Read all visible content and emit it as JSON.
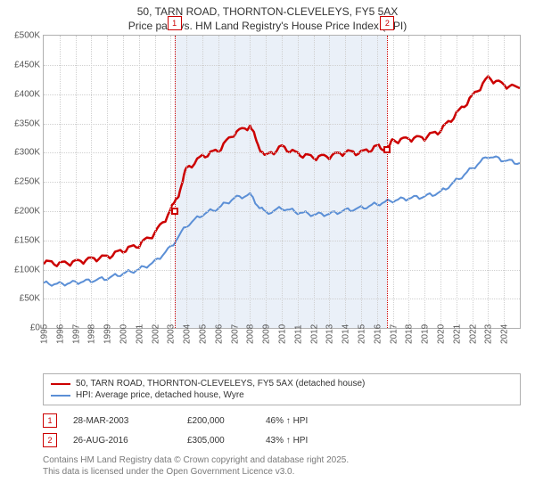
{
  "title_line1": "50, TARN ROAD, THORNTON-CLEVELEYS, FY5 5AX",
  "title_line2": "Price paid vs. HM Land Registry's House Price Index (HPI)",
  "chart": {
    "type": "line",
    "background_color": "#ffffff",
    "grid_color": "#d0d0d0",
    "axis_color": "#b0b0b0",
    "shade_color": "#eaf0f8",
    "text_color": "#555555",
    "tick_fontsize": 10,
    "x": {
      "min": 1995,
      "max": 2025,
      "tick_step": 1,
      "labels": [
        "1995",
        "1996",
        "1997",
        "1998",
        "1999",
        "2000",
        "2001",
        "2002",
        "2003",
        "2004",
        "2005",
        "2006",
        "2007",
        "2008",
        "2009",
        "2010",
        "2011",
        "2012",
        "2013",
        "2014",
        "2015",
        "2016",
        "2017",
        "2018",
        "2019",
        "2020",
        "2021",
        "2022",
        "2023",
        "2024"
      ]
    },
    "y": {
      "min": 0,
      "max": 500000,
      "tick_step": 50000,
      "labels": [
        "£0",
        "£50K",
        "£100K",
        "£150K",
        "£200K",
        "£250K",
        "£300K",
        "£350K",
        "£400K",
        "£450K",
        "£500K"
      ]
    },
    "series": [
      {
        "name": "property_price",
        "color": "#cc0000",
        "width": 2.5,
        "points": [
          [
            1995,
            113000
          ],
          [
            1996,
            110000
          ],
          [
            1997,
            113000
          ],
          [
            1998,
            118000
          ],
          [
            1999,
            122000
          ],
          [
            2000,
            133000
          ],
          [
            2001,
            142000
          ],
          [
            2002,
            162000
          ],
          [
            2003,
            200000
          ],
          [
            2003.5,
            230000
          ],
          [
            2004,
            272000
          ],
          [
            2005,
            294000
          ],
          [
            2006,
            304000
          ],
          [
            2007,
            333000
          ],
          [
            2008,
            346000
          ],
          [
            2008.5,
            313000
          ],
          [
            2009,
            294000
          ],
          [
            2010,
            310000
          ],
          [
            2011,
            298000
          ],
          [
            2012,
            292000
          ],
          [
            2013,
            294000
          ],
          [
            2014,
            301000
          ],
          [
            2015,
            300000
          ],
          [
            2016,
            310000
          ],
          [
            2016.67,
            305000
          ],
          [
            2017,
            320000
          ],
          [
            2018,
            324000
          ],
          [
            2019,
            326000
          ],
          [
            2020,
            338000
          ],
          [
            2021,
            366000
          ],
          [
            2022,
            396000
          ],
          [
            2023,
            428000
          ],
          [
            2024,
            416000
          ],
          [
            2025,
            410000
          ]
        ]
      },
      {
        "name": "hpi_wyre",
        "color": "#5b8fd6",
        "width": 2,
        "points": [
          [
            1995,
            76000
          ],
          [
            1996,
            75000
          ],
          [
            1997,
            78000
          ],
          [
            1998,
            81000
          ],
          [
            1999,
            85000
          ],
          [
            2000,
            93000
          ],
          [
            2001,
            100000
          ],
          [
            2002,
            113000
          ],
          [
            2003,
            138000
          ],
          [
            2004,
            175000
          ],
          [
            2005,
            194000
          ],
          [
            2006,
            205000
          ],
          [
            2007,
            222000
          ],
          [
            2008,
            228000
          ],
          [
            2008.5,
            210000
          ],
          [
            2009,
            196000
          ],
          [
            2010,
            205000
          ],
          [
            2011,
            198000
          ],
          [
            2012,
            194000
          ],
          [
            2013,
            195000
          ],
          [
            2014,
            201000
          ],
          [
            2015,
            205000
          ],
          [
            2016,
            212000
          ],
          [
            2017,
            218000
          ],
          [
            2018,
            222000
          ],
          [
            2019,
            225000
          ],
          [
            2020,
            232000
          ],
          [
            2021,
            252000
          ],
          [
            2022,
            273000
          ],
          [
            2023,
            294000
          ],
          [
            2024,
            287000
          ],
          [
            2025,
            282000
          ]
        ]
      }
    ],
    "markers": [
      {
        "n": 1,
        "label": "1",
        "x": 2003.24,
        "y": 200000,
        "color": "#cc0000"
      },
      {
        "n": 2,
        "label": "2",
        "x": 2016.65,
        "y": 305000,
        "color": "#cc0000"
      }
    ]
  },
  "legend": {
    "items": [
      {
        "color": "#cc0000",
        "label": "50, TARN ROAD, THORNTON-CLEVELEYS, FY5 5AX (detached house)"
      },
      {
        "color": "#5b8fd6",
        "label": "HPI: Average price, detached house, Wyre"
      }
    ]
  },
  "events": [
    {
      "n": "1",
      "color": "#cc0000",
      "date": "28-MAR-2003",
      "price": "£200,000",
      "relative": "46% ↑ HPI"
    },
    {
      "n": "2",
      "color": "#cc0000",
      "date": "26-AUG-2016",
      "price": "£305,000",
      "relative": "43% ↑ HPI"
    }
  ],
  "attribution": {
    "line1": "Contains HM Land Registry data © Crown copyright and database right 2025.",
    "line2": "This data is licensed under the Open Government Licence v3.0."
  }
}
